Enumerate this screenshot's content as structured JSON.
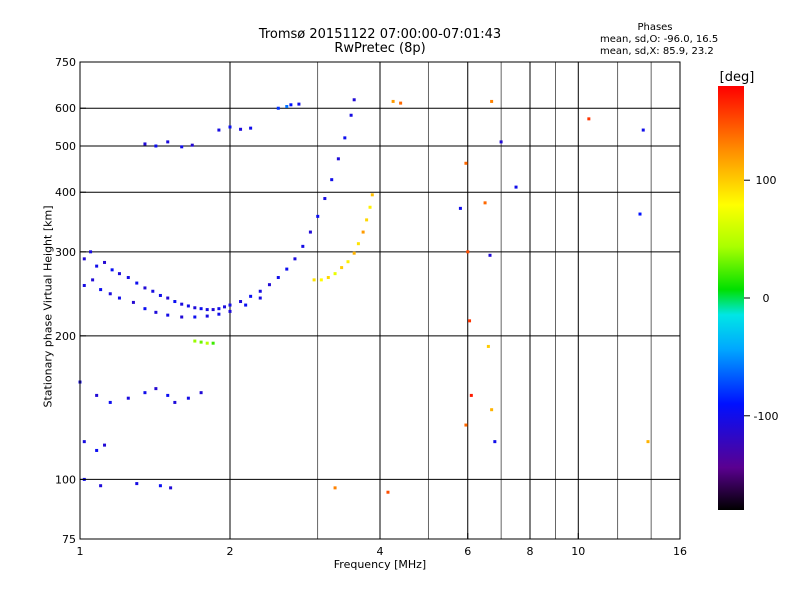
{
  "header": {
    "title": "Tromsø 20151122 07:00:00-07:01:43",
    "subtitle": "RwPretec (8p)"
  },
  "stats": {
    "heading": "Phases",
    "line1": "mean, sd,O: -96.0, 16.5",
    "line2": "mean, sd,X:  85.9, 23.2"
  },
  "colorbar": {
    "unit": "[deg]",
    "range": [
      -180,
      180
    ],
    "ticks": [
      {
        "value": 100,
        "label": "100"
      },
      {
        "value": 0,
        "label": "0"
      },
      {
        "value": -100,
        "label": "-100"
      }
    ]
  },
  "chart_data": {
    "type": "scatter",
    "title": "Tromsø 20151122 07:00:00-07:01:43",
    "subtitle": "RwPretec (8p)",
    "xlabel": "Frequency [MHz]",
    "ylabel": "Stationary phase Virtual Height [km]",
    "xscale": "log",
    "yscale": "log",
    "xlim": [
      1,
      16
    ],
    "ylim": [
      75,
      750
    ],
    "grid": true,
    "x_ticks": [
      {
        "value": 1,
        "label": "1"
      },
      {
        "value": 2,
        "label": "2"
      },
      {
        "value": 4,
        "label": "4"
      },
      {
        "value": 6,
        "label": "6"
      },
      {
        "value": 8,
        "label": "8"
      },
      {
        "value": 10,
        "label": "10"
      },
      {
        "value": 16,
        "label": "16"
      }
    ],
    "y_ticks": [
      {
        "value": 75,
        "label": "75"
      },
      {
        "value": 100,
        "label": "100"
      },
      {
        "value": 200,
        "label": "200"
      },
      {
        "value": 300,
        "label": "300"
      },
      {
        "value": 400,
        "label": "400"
      },
      {
        "value": 500,
        "label": "500"
      },
      {
        "value": 600,
        "label": "600"
      },
      {
        "value": 750,
        "label": "750"
      }
    ],
    "x_gridlines": [
      1,
      2,
      4,
      6,
      8,
      10
    ],
    "y_gridlines": [
      100,
      200,
      300,
      400,
      500,
      600
    ],
    "color_scale": "phase (deg), rainbow from -180 to 180",
    "series": [
      {
        "points": [
          [
            1.02,
            290,
            -110
          ],
          [
            1.05,
            300,
            -105
          ],
          [
            1.08,
            280,
            -100
          ],
          [
            1.12,
            285,
            -112
          ],
          [
            1.16,
            275,
            -95
          ],
          [
            1.2,
            270,
            -108
          ],
          [
            1.25,
            265,
            -102
          ],
          [
            1.3,
            258,
            -98
          ],
          [
            1.35,
            252,
            -110
          ],
          [
            1.4,
            248,
            -104
          ],
          [
            1.45,
            243,
            -100
          ],
          [
            1.5,
            240,
            -112
          ],
          [
            1.55,
            236,
            -96
          ],
          [
            1.6,
            233,
            -106
          ],
          [
            1.65,
            231,
            -100
          ],
          [
            1.7,
            229,
            -108
          ],
          [
            1.75,
            228,
            -98
          ],
          [
            1.8,
            227,
            -104
          ],
          [
            1.85,
            227,
            -110
          ],
          [
            1.9,
            228,
            -100
          ],
          [
            1.95,
            230,
            -106
          ],
          [
            2.0,
            232,
            -102
          ],
          [
            2.1,
            236,
            -108
          ],
          [
            2.2,
            242,
            -96
          ],
          [
            2.3,
            248,
            -104
          ],
          [
            2.4,
            256,
            -110
          ],
          [
            2.5,
            265,
            -100
          ],
          [
            2.6,
            276,
            -98
          ],
          [
            2.7,
            290,
            -106
          ],
          [
            2.8,
            308,
            -102
          ],
          [
            2.9,
            330,
            -110
          ],
          [
            3.0,
            356,
            -96
          ],
          [
            3.1,
            388,
            -104
          ],
          [
            3.2,
            425,
            -100
          ],
          [
            3.3,
            470,
            -108
          ],
          [
            3.4,
            520,
            -98
          ],
          [
            3.5,
            580,
            -104
          ],
          [
            3.55,
            625,
            -110
          ]
        ]
      },
      {
        "points": [
          [
            1.02,
            255,
            -104
          ],
          [
            1.06,
            262,
            -110
          ],
          [
            1.1,
            250,
            -98
          ],
          [
            1.15,
            245,
            -106
          ],
          [
            1.2,
            240,
            -100
          ],
          [
            1.28,
            235,
            -112
          ],
          [
            1.35,
            228,
            -96
          ],
          [
            1.42,
            224,
            -108
          ],
          [
            1.5,
            221,
            -102
          ],
          [
            1.6,
            219,
            -110
          ],
          [
            1.7,
            219,
            -98
          ],
          [
            1.8,
            220,
            -104
          ],
          [
            1.9,
            222,
            -100
          ],
          [
            2.0,
            225,
            -108
          ],
          [
            2.15,
            232,
            -96
          ],
          [
            2.3,
            240,
            -104
          ]
        ]
      },
      {
        "points": [
          [
            2.95,
            262,
            90
          ],
          [
            3.05,
            262,
            80
          ],
          [
            3.15,
            265,
            95
          ],
          [
            3.25,
            270,
            70
          ],
          [
            3.35,
            278,
            100
          ],
          [
            3.45,
            286,
            85
          ],
          [
            3.55,
            298,
            110
          ],
          [
            3.62,
            312,
            90
          ],
          [
            3.7,
            330,
            120
          ],
          [
            3.76,
            350,
            95
          ],
          [
            3.82,
            372,
            85
          ],
          [
            3.86,
            395,
            105
          ]
        ]
      },
      {
        "points": [
          [
            1.35,
            505,
            -110
          ],
          [
            1.42,
            500,
            -98
          ],
          [
            1.5,
            510,
            -106
          ],
          [
            1.6,
            498,
            -100
          ],
          [
            1.68,
            502,
            -112
          ],
          [
            1.9,
            540,
            -104
          ],
          [
            2.0,
            548,
            -96
          ],
          [
            2.1,
            542,
            -108
          ],
          [
            2.2,
            545,
            -100
          ],
          [
            2.5,
            600,
            -80
          ],
          [
            2.6,
            605,
            -60
          ],
          [
            2.65,
            610,
            -90
          ],
          [
            2.75,
            612,
            -100
          ]
        ]
      },
      {
        "points": [
          [
            1.0,
            160,
            -104
          ],
          [
            1.08,
            150,
            -110
          ],
          [
            1.15,
            145,
            -98
          ],
          [
            1.25,
            148,
            -106
          ],
          [
            1.35,
            152,
            -100
          ],
          [
            1.42,
            155,
            -112
          ],
          [
            1.5,
            150,
            -96
          ],
          [
            1.55,
            145,
            -108
          ],
          [
            1.65,
            148,
            -102
          ],
          [
            1.75,
            152,
            -110
          ],
          [
            1.02,
            120,
            -104
          ],
          [
            1.08,
            115,
            -96
          ],
          [
            1.12,
            118,
            -110
          ],
          [
            1.02,
            100,
            -100
          ],
          [
            1.1,
            97,
            -108
          ],
          [
            1.3,
            98,
            -104
          ],
          [
            1.45,
            97,
            -96
          ],
          [
            1.52,
            96,
            -110
          ],
          [
            1.7,
            195,
            40
          ],
          [
            1.75,
            194,
            30
          ],
          [
            1.8,
            193,
            50
          ],
          [
            1.85,
            193,
            20
          ]
        ]
      },
      {
        "points": [
          [
            5.95,
            460,
            140
          ],
          [
            6.0,
            300,
            150
          ],
          [
            6.05,
            215,
            160
          ],
          [
            6.1,
            150,
            170
          ],
          [
            5.95,
            130,
            140
          ],
          [
            6.7,
            620,
            130
          ],
          [
            6.65,
            295,
            -110
          ],
          [
            6.6,
            190,
            100
          ],
          [
            6.7,
            140,
            110
          ],
          [
            6.8,
            120,
            -100
          ],
          [
            7.0,
            510,
            -110
          ],
          [
            7.5,
            410,
            -100
          ],
          [
            6.5,
            380,
            140
          ],
          [
            10.5,
            570,
            160
          ],
          [
            13.5,
            540,
            -100
          ],
          [
            13.8,
            120,
            110
          ],
          [
            4.25,
            620,
            120
          ],
          [
            4.4,
            615,
            140
          ],
          [
            4.15,
            94,
            150
          ],
          [
            3.25,
            96,
            130
          ],
          [
            5.8,
            370,
            -100
          ],
          [
            13.3,
            360,
            -90
          ]
        ]
      }
    ]
  }
}
